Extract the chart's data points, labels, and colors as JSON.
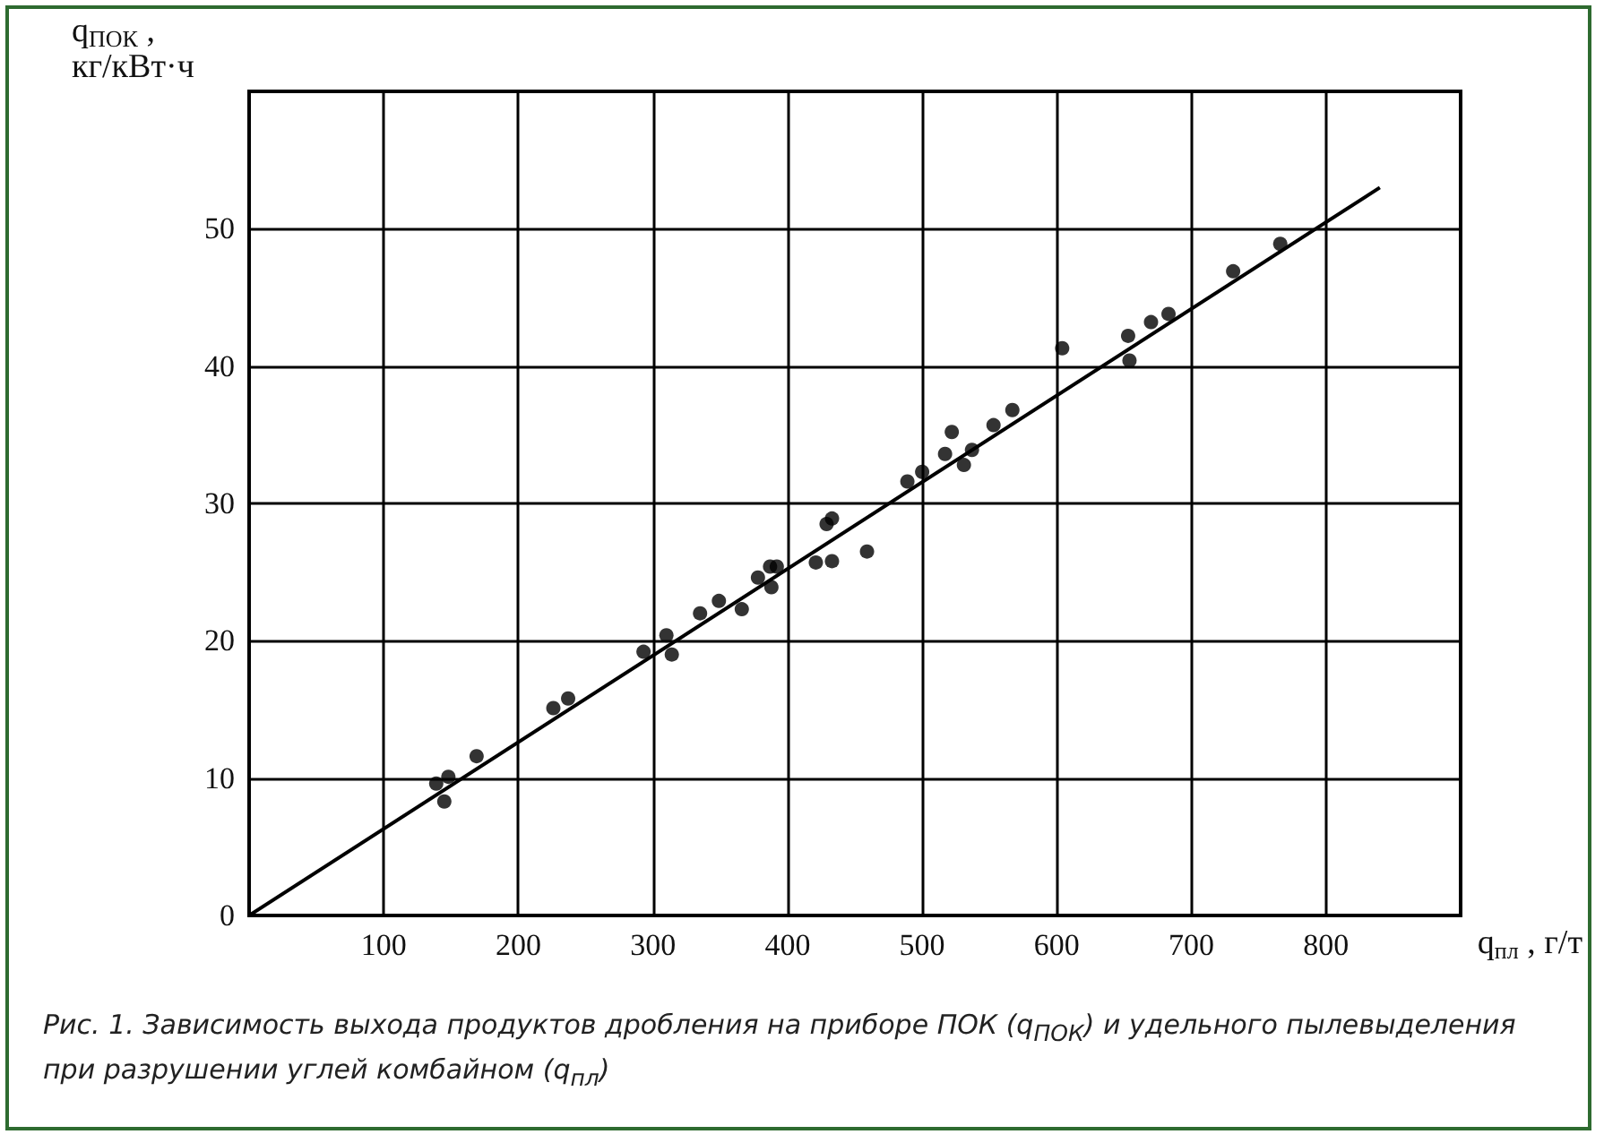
{
  "chart_data": {
    "type": "scatter",
    "xlabel": "q$_{пл}$ , г/т",
    "ylabel": "q$_{ПОК}$ ,\nкг/кВт·ч",
    "xlim": [
      0,
      900
    ],
    "xticks": [
      100,
      200,
      300,
      400,
      500,
      600,
      700,
      800
    ],
    "ylim": [
      0,
      60
    ],
    "yticks": [
      0,
      10,
      20,
      30,
      40,
      50
    ],
    "grid": true,
    "marker": "circle",
    "series": [
      {
        "color": "#000000",
        "x": [
          139,
          148,
          145,
          169,
          226,
          237,
          293,
          310,
          314,
          335,
          349,
          366,
          378,
          387,
          392,
          388,
          421,
          433,
          429,
          433,
          459,
          489,
          500,
          522,
          517,
          531,
          537,
          553,
          567,
          604,
          653,
          654,
          670,
          683,
          731,
          766
        ],
        "values": [
          9.6,
          10.1,
          8.3,
          11.6,
          15.1,
          15.8,
          19.2,
          20.4,
          19.0,
          22.0,
          22.9,
          22.3,
          24.6,
          25.4,
          25.4,
          23.9,
          25.7,
          25.8,
          28.5,
          28.9,
          26.5,
          31.6,
          32.3,
          35.2,
          33.6,
          32.8,
          33.9,
          35.7,
          36.8,
          41.3,
          42.2,
          40.4,
          43.2,
          43.8,
          46.9,
          48.9
        ]
      },
      {
        "type": "line",
        "color": "#000000",
        "marker": "none",
        "line_style": "solid",
        "x": [
          0,
          840
        ],
        "values": [
          0,
          53
        ]
      }
    ],
    "annotations": [
      "Рис. 1. Зависимость выхода продуктов дробления на приборе ПОК (q$_{ПОК}$) и удельного пылевыделения при разрушении углей комбайном (q$_{пл}$)"
    ]
  }
}
